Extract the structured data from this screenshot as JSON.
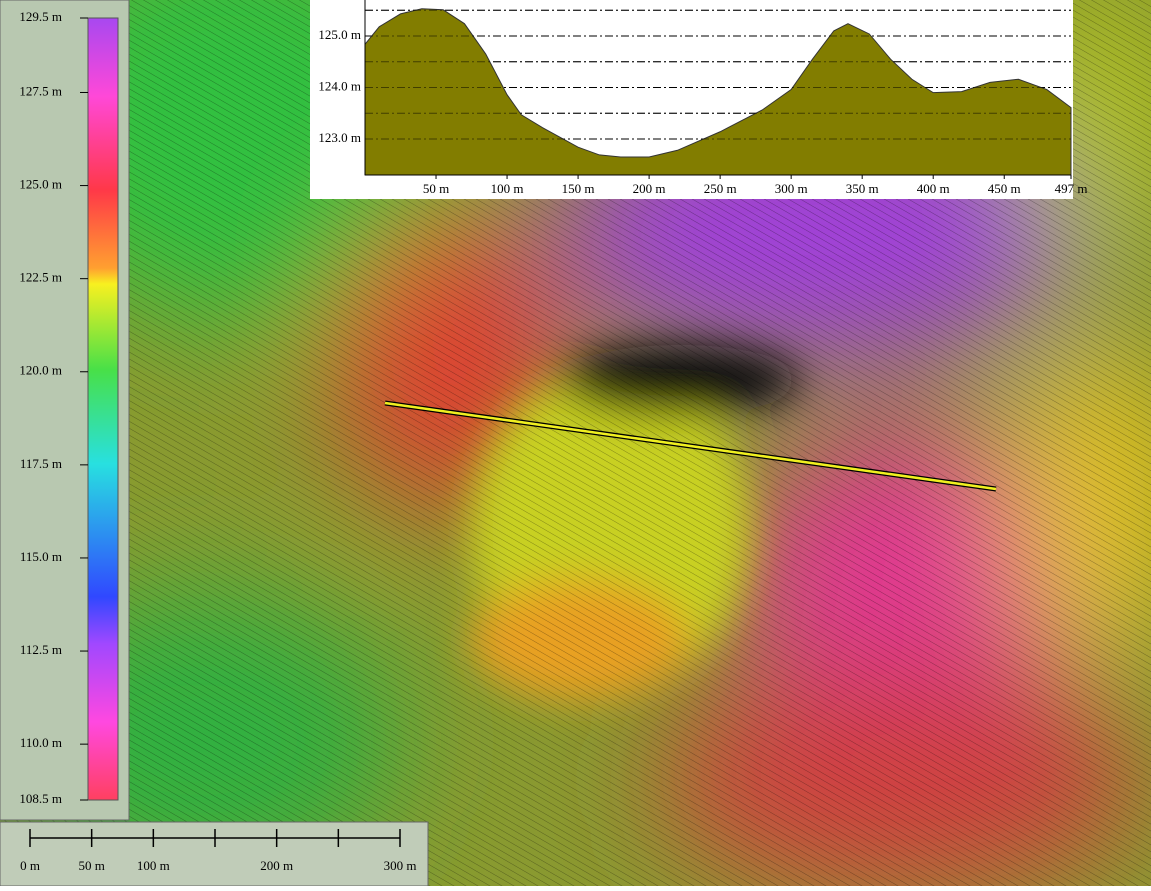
{
  "chart_data": {
    "type": "area",
    "color": "#827d00",
    "x": [
      0,
      10,
      25,
      40,
      55,
      70,
      85,
      100,
      110,
      125,
      150,
      165,
      180,
      200,
      220,
      250,
      280,
      300,
      315,
      330,
      340,
      355,
      370,
      385,
      400,
      420,
      440,
      460,
      480,
      497
    ],
    "values": [
      124.84,
      125.18,
      125.43,
      125.53,
      125.51,
      125.24,
      124.65,
      123.86,
      123.47,
      123.22,
      122.84,
      122.69,
      122.65,
      122.65,
      122.78,
      123.14,
      123.57,
      123.96,
      124.55,
      125.1,
      125.24,
      125.04,
      124.55,
      124.16,
      123.9,
      123.92,
      124.1,
      124.16,
      123.96,
      123.61
    ],
    "xlim": [
      0,
      497
    ],
    "ylim": [
      122.3,
      125.7
    ],
    "xticks": [
      {
        "value": 50,
        "label": "50 m"
      },
      {
        "value": 100,
        "label": "100 m"
      },
      {
        "value": 150,
        "label": "150 m"
      },
      {
        "value": 200,
        "label": "200 m"
      },
      {
        "value": 250,
        "label": "250 m"
      },
      {
        "value": 300,
        "label": "300 m"
      },
      {
        "value": 350,
        "label": "350 m"
      },
      {
        "value": 400,
        "label": "400 m"
      },
      {
        "value": 450,
        "label": "450 m"
      },
      {
        "value": 497,
        "label": "497 m"
      }
    ],
    "yticks": [
      {
        "value": 123,
        "label": "123.0 m"
      },
      {
        "value": 124,
        "label": "124.0 m"
      },
      {
        "value": 125,
        "label": "125.0 m"
      }
    ],
    "gridlines": [
      123,
      123.5,
      124,
      124.5,
      125,
      125.5
    ]
  },
  "legend": {
    "range": [
      108.5,
      129.5
    ],
    "ticks": [
      {
        "value": 129.5,
        "label": "129.5 m"
      },
      {
        "value": 127.5,
        "label": "127.5 m"
      },
      {
        "value": 125,
        "label": "125.0 m"
      },
      {
        "value": 122.5,
        "label": "122.5 m"
      },
      {
        "value": 120,
        "label": "120.0 m"
      },
      {
        "value": 117.5,
        "label": "117.5 m"
      },
      {
        "value": 115,
        "label": "115.0 m"
      },
      {
        "value": 112.5,
        "label": "112.5 m"
      },
      {
        "value": 110,
        "label": "110.0 m"
      },
      {
        "value": 108.5,
        "label": "108.5 m"
      }
    ]
  },
  "scale_bar": {
    "range": [
      0,
      300
    ],
    "ticks": [
      {
        "value": 0,
        "label": "0 m"
      },
      {
        "value": 50,
        "label": "50 m"
      },
      {
        "value": 100,
        "label": "100 m"
      },
      {
        "value": 150,
        "label": null
      },
      {
        "value": 200,
        "label": "200 m"
      },
      {
        "value": 250,
        "label": null
      },
      {
        "value": 300,
        "label": "300 m"
      }
    ]
  }
}
